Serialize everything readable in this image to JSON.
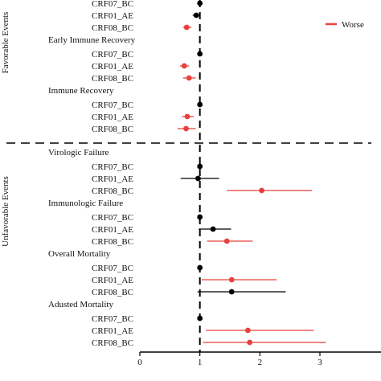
{
  "colors": {
    "worse": "#e8413c",
    "neutral": "#000000"
  },
  "legend": {
    "label": "Worse",
    "placement": "top-right"
  },
  "sections": {
    "favorable": "Favorable Events",
    "unfavorable": "Unfavorable Events"
  },
  "chart_data": {
    "type": "scatter",
    "subtype": "forest-plot",
    "reference_line": 1,
    "xlim": [
      0,
      3.2
    ],
    "x_ticks": [
      0,
      1,
      2,
      3
    ],
    "x_tick_labels": [
      "0",
      "1",
      "2",
      "3"
    ],
    "legend": [
      "Worse"
    ],
    "groups": [
      {
        "title": "",
        "section": "favorable",
        "rows": [
          {
            "label": "CRF07_BC",
            "est": 1.0,
            "lo": 1.0,
            "hi": 1.0,
            "status": "neutral"
          },
          {
            "label": "CRF01_AE",
            "est": 0.94,
            "lo": 0.88,
            "hi": 1.0,
            "status": "neutral"
          },
          {
            "label": "CRF08_BC",
            "est": 0.78,
            "lo": 0.72,
            "hi": 0.86,
            "status": "worse"
          }
        ]
      },
      {
        "title": "Early Immune Recovery",
        "section": "favorable",
        "rows": [
          {
            "label": "CRF07_BC",
            "est": 1.0,
            "lo": 1.0,
            "hi": 1.0,
            "status": "neutral"
          },
          {
            "label": "CRF01_AE",
            "est": 0.74,
            "lo": 0.67,
            "hi": 0.82,
            "status": "worse"
          },
          {
            "label": "CRF08_BC",
            "est": 0.82,
            "lo": 0.72,
            "hi": 0.93,
            "status": "worse"
          }
        ]
      },
      {
        "title": "Immune Recovery",
        "section": "favorable",
        "rows": [
          {
            "label": "CRF07_BC",
            "est": 1.0,
            "lo": 1.0,
            "hi": 1.0,
            "status": "neutral"
          },
          {
            "label": "CRF01_AE",
            "est": 0.79,
            "lo": 0.7,
            "hi": 0.9,
            "status": "worse"
          },
          {
            "label": "CRF08_BC",
            "est": 0.77,
            "lo": 0.63,
            "hi": 0.93,
            "status": "worse"
          }
        ]
      },
      {
        "title": "Virologic Failure",
        "section": "unfavorable",
        "rows": [
          {
            "label": "CRF07_BC",
            "est": 1.0,
            "lo": 1.0,
            "hi": 1.0,
            "status": "neutral"
          },
          {
            "label": "CRF01_AE",
            "est": 0.97,
            "lo": 0.68,
            "hi": 1.32,
            "status": "neutral"
          },
          {
            "label": "CRF08_BC",
            "est": 2.03,
            "lo": 1.45,
            "hi": 2.87,
            "status": "worse"
          }
        ]
      },
      {
        "title": "Immunologic Failure",
        "section": "unfavorable",
        "rows": [
          {
            "label": "CRF07_BC",
            "est": 1.0,
            "lo": 1.0,
            "hi": 1.0,
            "status": "neutral"
          },
          {
            "label": "CRF01_AE",
            "est": 1.22,
            "lo": 0.98,
            "hi": 1.52,
            "status": "neutral"
          },
          {
            "label": "CRF08_BC",
            "est": 1.45,
            "lo": 1.12,
            "hi": 1.88,
            "status": "worse"
          }
        ]
      },
      {
        "title": "Overall Mortality",
        "section": "unfavorable",
        "rows": [
          {
            "label": "CRF07_BC",
            "est": 1.0,
            "lo": 1.0,
            "hi": 1.0,
            "status": "neutral"
          },
          {
            "label": "CRF01_AE",
            "est": 1.53,
            "lo": 1.03,
            "hi": 2.28,
            "status": "worse"
          },
          {
            "label": "CRF08_BC",
            "est": 1.53,
            "lo": 0.96,
            "hi": 2.43,
            "status": "neutral"
          }
        ]
      },
      {
        "title": "Adusted Mortality",
        "section": "unfavorable",
        "rows": [
          {
            "label": "CRF07_BC",
            "est": 1.0,
            "lo": 1.0,
            "hi": 1.0,
            "status": "neutral"
          },
          {
            "label": "CRF01_AE",
            "est": 1.8,
            "lo": 1.1,
            "hi": 2.9,
            "status": "worse"
          },
          {
            "label": "CRF08_BC",
            "est": 1.83,
            "lo": 1.05,
            "hi": 3.1,
            "status": "worse"
          }
        ]
      }
    ]
  }
}
